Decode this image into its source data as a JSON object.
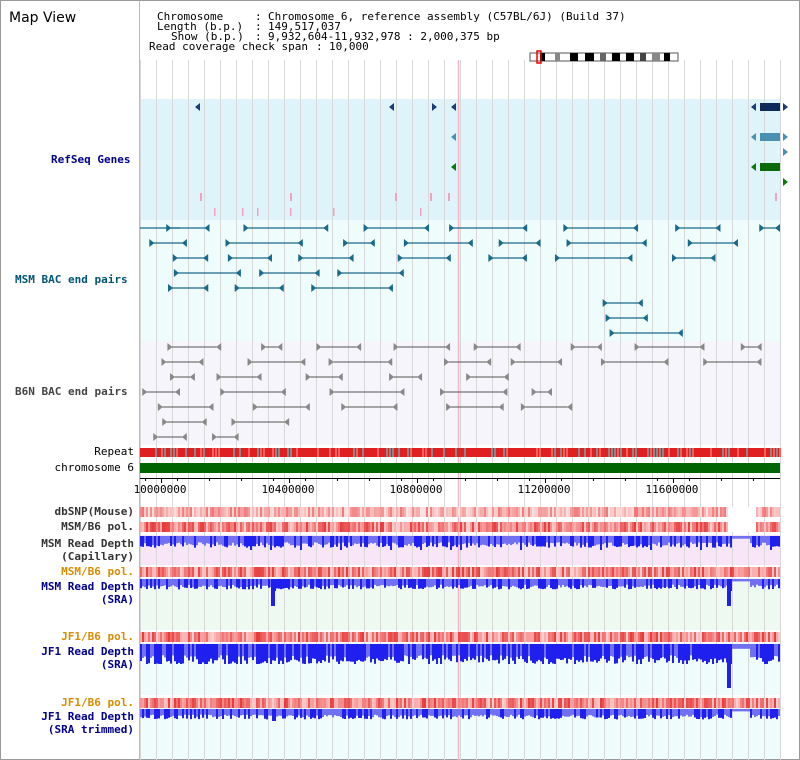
{
  "title": "Map View",
  "info": {
    "chromosome_key": "Chromosome",
    "chromosome_val": "Chromosome 6, reference assembly (C57BL/6J) (Build 37)",
    "length_key": "Length (b.p.)",
    "length_val": "149,517,037",
    "show_key": "Show (b.p.)",
    "show_val": "9,932,604-11,932,978 : 2,000,375 bp",
    "coverage_key": "Read coverage check span",
    "coverage_val": "10,000"
  },
  "tracks": {
    "refseq": {
      "label": "RefSeq Genes",
      "color": "#00008b"
    },
    "msm_bac": {
      "label": "MSM BAC end pairs",
      "color": "#005577"
    },
    "b6n_bac": {
      "label": "B6N BAC end pairs",
      "color": "#444444"
    },
    "repeat": {
      "label": "Repeat"
    },
    "chromosome": {
      "label": "chromosome 6",
      "color": "#006400"
    },
    "dbsnp": {
      "label": "dbSNP(Mouse)"
    },
    "msm_b6_pol_1": {
      "label": "MSM/B6 pol."
    },
    "msm_depth_cap_1": {
      "label": "MSM Read Depth"
    },
    "msm_depth_cap_2": {
      "label": "(Capillary)"
    },
    "msm_b6_pol_2": {
      "label": "MSM/B6 pol.",
      "color": "#d98c00"
    },
    "msm_depth_sra_1": {
      "label": "MSM Read Depth"
    },
    "msm_depth_sra_2": {
      "label": "(SRA)"
    },
    "jf1_b6_pol_1": {
      "label": "JF1/B6 pol.",
      "color": "#d98c00"
    },
    "jf1_depth_sra_1": {
      "label": "JF1 Read Depth"
    },
    "jf1_depth_sra_2": {
      "label": "(SRA)"
    },
    "jf1_b6_pol_2": {
      "label": "JF1/B6 pol.",
      "color": "#d98c00"
    },
    "jf1_depth_trim_1": {
      "label": "JF1 Read Depth"
    },
    "jf1_depth_trim_2": {
      "label": "(SRA trimmed)"
    }
  },
  "axis": {
    "ticks": [
      {
        "label": "10000000",
        "value": 10000000
      },
      {
        "label": "10400000",
        "value": 10400000
      },
      {
        "label": "10800000",
        "value": 10800000
      },
      {
        "label": "11200000",
        "value": 11200000
      },
      {
        "label": "11600000",
        "value": 11600000
      }
    ],
    "range": [
      9932604,
      11932978
    ]
  },
  "colors": {
    "label_blue": "#00008b",
    "label_orange": "#d98c00",
    "refseq_bg": "#dff3fa",
    "msm_bg": "#eefcfc",
    "b6n_bg": "#f5f5fb",
    "depth_bar": "#2020ee",
    "chrom_green": "#006400",
    "repeat_red": "#e02020"
  }
}
